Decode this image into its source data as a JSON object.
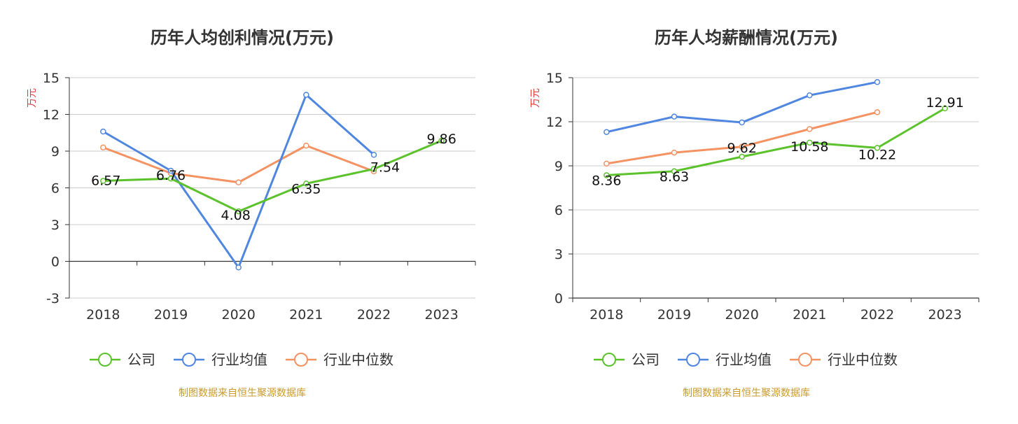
{
  "source_note": "制图数据来自恒生聚源数据库",
  "legend": [
    "公司",
    "行业均值",
    "行业中位数"
  ],
  "colors": {
    "company": "#5cc22c",
    "industry_mean": "#4f86e0",
    "industry_median": "#f59262"
  },
  "chart_data": [
    {
      "type": "line",
      "title": "历年人均创利情况(万元)",
      "ylabel": "万元",
      "categories": [
        "2018",
        "2019",
        "2020",
        "2021",
        "2022",
        "2023"
      ],
      "ylim": [
        -3,
        15
      ],
      "yticks": [
        15,
        12,
        9,
        6,
        3,
        0,
        -3
      ],
      "grid": true,
      "legend_position": "bottom",
      "series": [
        {
          "name": "公司",
          "values": [
            6.57,
            6.76,
            4.08,
            6.35,
            7.54,
            9.86
          ],
          "labels": [
            "6.57",
            "6.76",
            "4.08",
            "6.35",
            "7.54",
            "9.86"
          ]
        },
        {
          "name": "行业均值",
          "values": [
            10.6,
            7.4,
            -0.5,
            13.6,
            8.7,
            null
          ]
        },
        {
          "name": "行业中位数",
          "values": [
            9.3,
            7.2,
            6.45,
            9.45,
            7.35,
            null
          ]
        }
      ]
    },
    {
      "type": "line",
      "title": "历年人均薪酬情况(万元)",
      "ylabel": "万元",
      "categories": [
        "2018",
        "2019",
        "2020",
        "2021",
        "2022",
        "2023"
      ],
      "ylim": [
        0,
        15
      ],
      "yticks": [
        15,
        12,
        9,
        6,
        3,
        0
      ],
      "grid": true,
      "legend_position": "bottom",
      "series": [
        {
          "name": "公司",
          "values": [
            8.36,
            8.63,
            9.62,
            10.58,
            10.22,
            12.91
          ],
          "labels": [
            "8.36",
            "8.63",
            "9.62",
            "10.58",
            "10.22",
            "12.91"
          ]
        },
        {
          "name": "行业均值",
          "values": [
            11.3,
            12.35,
            11.95,
            13.8,
            14.7,
            null
          ]
        },
        {
          "name": "行业中位数",
          "values": [
            9.15,
            9.9,
            10.3,
            11.5,
            12.65,
            null
          ]
        }
      ]
    }
  ]
}
